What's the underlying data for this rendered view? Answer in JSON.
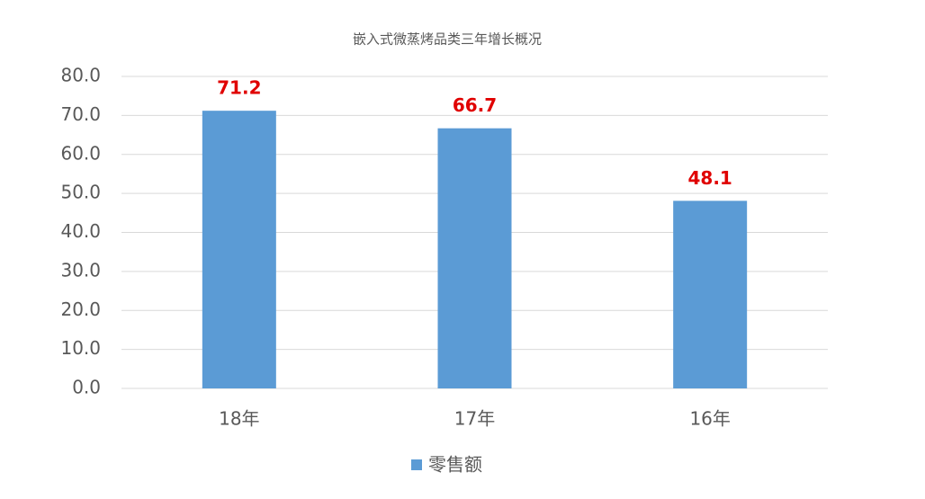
{
  "chart_data": {
    "type": "bar",
    "title": "嵌入式微蒸烤品类三年增长概况",
    "categories": [
      "18年",
      "17年",
      "16年"
    ],
    "series": [
      {
        "name": "零售额",
        "color": "#5b9bd5",
        "values": [
          71.2,
          66.7,
          48.1
        ]
      }
    ],
    "ylim": [
      0,
      80
    ],
    "yticks": [
      {
        "value": 0,
        "label": "0.0"
      },
      {
        "value": 10,
        "label": "10.0"
      },
      {
        "value": 20,
        "label": "20.0"
      },
      {
        "value": 30,
        "label": "30.0"
      },
      {
        "value": 40,
        "label": "40.0"
      },
      {
        "value": 50,
        "label": "50.0"
      },
      {
        "value": 60,
        "label": "60.0"
      },
      {
        "value": 70,
        "label": "70.0"
      },
      {
        "value": 80,
        "label": "80.0"
      }
    ],
    "grid": true,
    "value_label_color": "#e00000",
    "legend": "bottom"
  }
}
